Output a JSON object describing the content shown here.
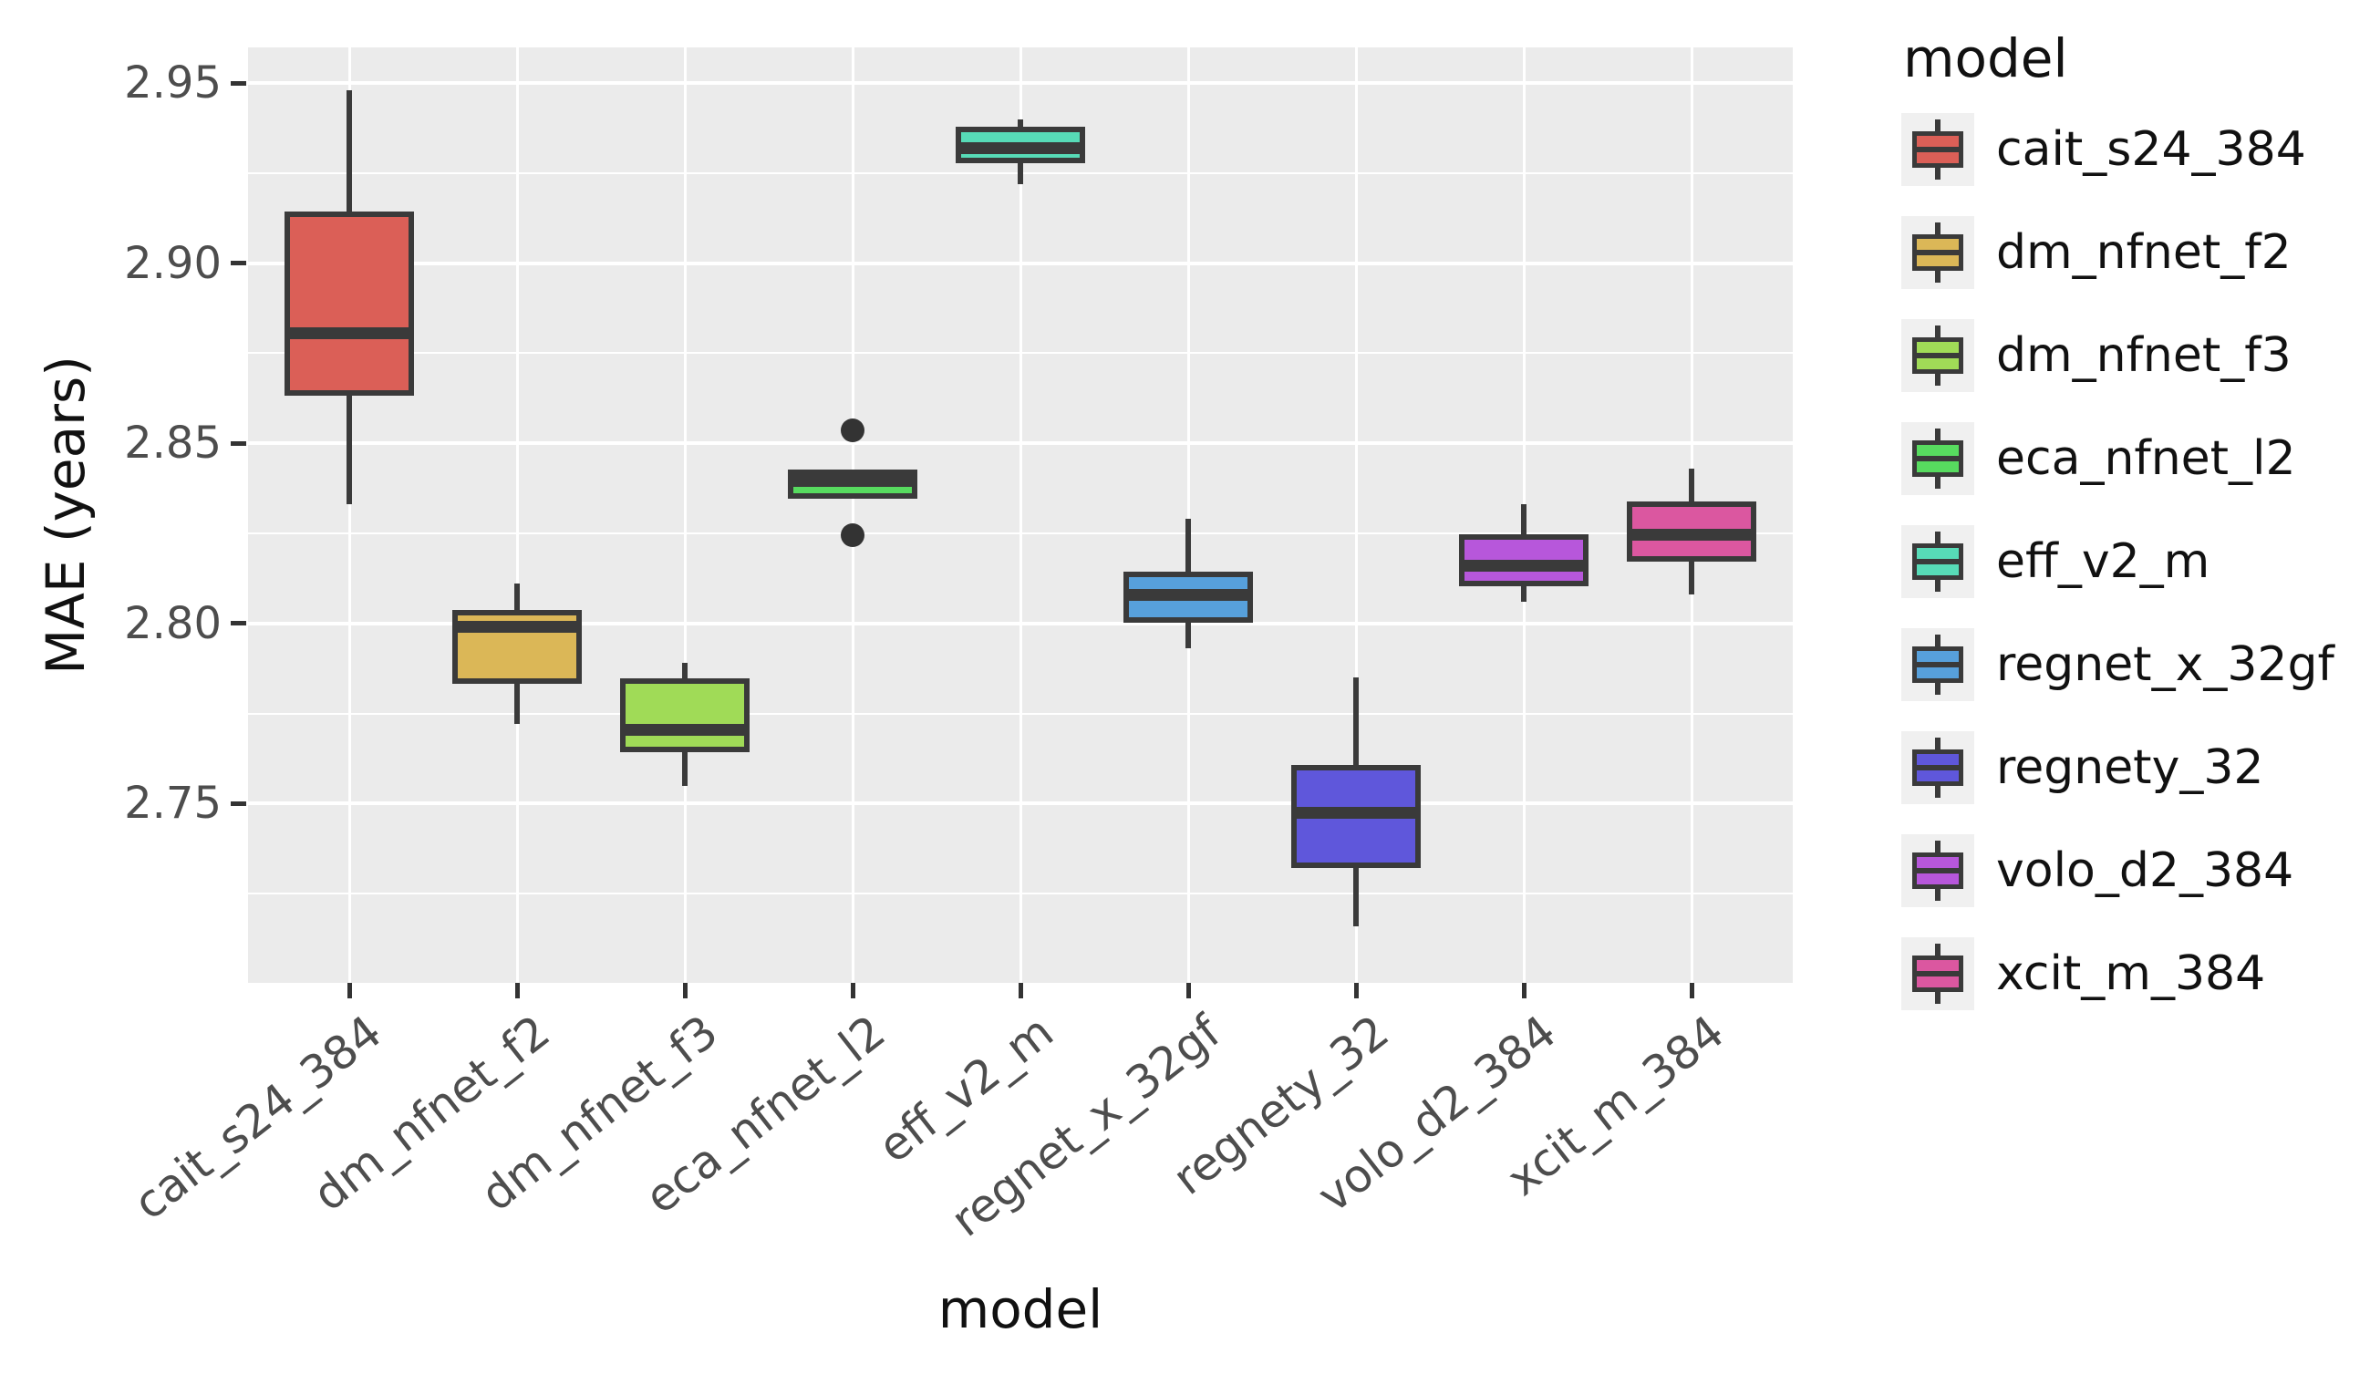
{
  "y_axis": {
    "label": "MAE (years)",
    "tick_labels": [
      "2.95",
      "2.90",
      "2.85",
      "2.80",
      "2.75"
    ],
    "tick_values": [
      2.95,
      2.9,
      2.85,
      2.8,
      2.75
    ],
    "minor_tick_values": [
      2.925,
      2.875,
      2.825,
      2.775,
      2.725
    ]
  },
  "x_axis": {
    "label": "model",
    "categories": [
      "cait_s24_384",
      "dm_nfnet_f2",
      "dm_nfnet_f3",
      "eca_nfnet_l2",
      "eff_v2_m",
      "regnet_x_32gf",
      "regnety_32",
      "volo_d2_384",
      "xcit_m_384"
    ]
  },
  "legend": {
    "title": "model",
    "entries": [
      {
        "label": "cait_s24_384",
        "color": "#DB5F57"
      },
      {
        "label": "dm_nfnet_f2",
        "color": "#DBB757"
      },
      {
        "label": "dm_nfnet_f3",
        "color": "#A0DB57"
      },
      {
        "label": "eca_nfnet_l2",
        "color": "#57DB5F"
      },
      {
        "label": "eff_v2_m",
        "color": "#57DBB7"
      },
      {
        "label": "regnet_x_32gf",
        "color": "#57A0DB"
      },
      {
        "label": "regnety_32",
        "color": "#5F57DB"
      },
      {
        "label": "volo_d2_384",
        "color": "#B757DB"
      },
      {
        "label": "xcit_m_384",
        "color": "#DB57A0"
      }
    ]
  },
  "chart_data": {
    "type": "boxplot",
    "title": "",
    "xlabel": "model",
    "ylabel": "MAE (years)",
    "ylim": [
      2.7,
      2.96
    ],
    "grid": "on",
    "legend_position": "right",
    "categories": [
      "cait_s24_384",
      "dm_nfnet_f2",
      "dm_nfnet_f3",
      "eca_nfnet_l2",
      "eff_v2_m",
      "regnet_x_32gf",
      "regnety_32",
      "volo_d2_384",
      "xcit_m_384"
    ],
    "series": [
      {
        "model": "cait_s24_384",
        "color": "#DB5F57",
        "whisker_low": 2.833,
        "q1": 2.864,
        "median": 2.8805,
        "q3": 2.9135,
        "whisker_high": 2.948,
        "outliers": []
      },
      {
        "model": "dm_nfnet_f2",
        "color": "#DBB757",
        "whisker_low": 2.772,
        "q1": 2.784,
        "median": 2.799,
        "q3": 2.803,
        "whisker_high": 2.811,
        "outliers": []
      },
      {
        "model": "dm_nfnet_f3",
        "color": "#A0DB57",
        "whisker_low": 2.755,
        "q1": 2.765,
        "median": 2.7705,
        "q3": 2.784,
        "whisker_high": 2.789,
        "outliers": []
      },
      {
        "model": "eca_nfnet_l2",
        "color": "#57DB5F",
        "whisker_low": 2.8355,
        "q1": 2.8355,
        "median": 2.8395,
        "q3": 2.842,
        "whisker_high": 2.842,
        "outliers": [
          2.8535,
          2.8245
        ]
      },
      {
        "model": "eff_v2_m",
        "color": "#57DBB7",
        "whisker_low": 2.922,
        "q1": 2.9285,
        "median": 2.932,
        "q3": 2.937,
        "whisker_high": 2.94,
        "outliers": []
      },
      {
        "model": "regnet_x_32gf",
        "color": "#57A0DB",
        "whisker_low": 2.793,
        "q1": 2.801,
        "median": 2.808,
        "q3": 2.8135,
        "whisker_high": 2.829,
        "outliers": []
      },
      {
        "model": "regnety_32",
        "color": "#5F57DB",
        "whisker_low": 2.716,
        "q1": 2.733,
        "median": 2.7475,
        "q3": 2.76,
        "whisker_high": 2.785,
        "outliers": []
      },
      {
        "model": "volo_d2_384",
        "color": "#B757DB",
        "whisker_low": 2.806,
        "q1": 2.811,
        "median": 2.816,
        "q3": 2.824,
        "whisker_high": 2.833,
        "outliers": []
      },
      {
        "model": "xcit_m_384",
        "color": "#DB57A0",
        "whisker_low": 2.808,
        "q1": 2.818,
        "median": 2.8245,
        "q3": 2.833,
        "whisker_high": 2.843,
        "outliers": []
      }
    ]
  },
  "style": {
    "panel_bg": "#EBEBEB",
    "grid_color": "#FFFFFF",
    "box_border": "#3A3A3A",
    "tick_text": "#4D4D4D",
    "title_text": "#111111",
    "legend_key_bg": "#F0F0F0"
  }
}
